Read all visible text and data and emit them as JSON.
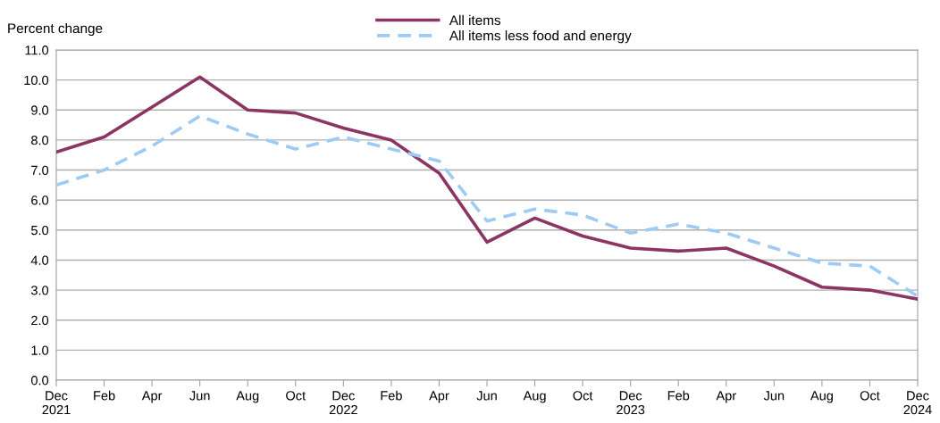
{
  "chart_data": {
    "type": "line",
    "ylabel": "Percent change",
    "categories": [
      "Dec\n2021",
      "Feb",
      "Apr",
      "Jun",
      "Aug",
      "Oct",
      "Dec\n2022",
      "Feb",
      "Apr",
      "Jun",
      "Aug",
      "Oct",
      "Dec\n2023",
      "Feb",
      "Apr",
      "Jun",
      "Aug",
      "Oct",
      "Dec\n2024"
    ],
    "series": [
      {
        "name": "All items",
        "color": "#8c3462",
        "line_style": "solid",
        "values": [
          7.6,
          8.1,
          9.1,
          10.1,
          9.0,
          8.9,
          8.4,
          8.0,
          6.9,
          4.6,
          5.4,
          4.8,
          4.4,
          4.3,
          4.4,
          3.8,
          3.1,
          3.0,
          2.7
        ]
      },
      {
        "name": "All items less food and energy",
        "color": "#9dcbf5",
        "line_style": "dashed",
        "values": [
          6.5,
          7.0,
          7.8,
          8.8,
          8.2,
          7.7,
          8.1,
          7.7,
          7.3,
          5.3,
          5.7,
          5.5,
          4.9,
          5.2,
          4.9,
          4.4,
          3.9,
          3.8,
          2.8
        ]
      }
    ],
    "ylim": [
      0,
      11
    ],
    "yticks": [
      {
        "value": 0,
        "label": "0.0"
      },
      {
        "value": 1,
        "label": "1.0"
      },
      {
        "value": 2,
        "label": "2.0"
      },
      {
        "value": 3,
        "label": "3.0"
      },
      {
        "value": 4,
        "label": "4.0"
      },
      {
        "value": 5,
        "label": "5.0"
      },
      {
        "value": 6,
        "label": "6.0"
      },
      {
        "value": 7,
        "label": "7.0"
      },
      {
        "value": 8,
        "label": "8.0"
      },
      {
        "value": 9,
        "label": "9.0"
      },
      {
        "value": 10,
        "label": "10.0"
      },
      {
        "value": 11,
        "label": "11.0"
      }
    ],
    "grid": "y",
    "legend": "top",
    "marker": "none"
  }
}
